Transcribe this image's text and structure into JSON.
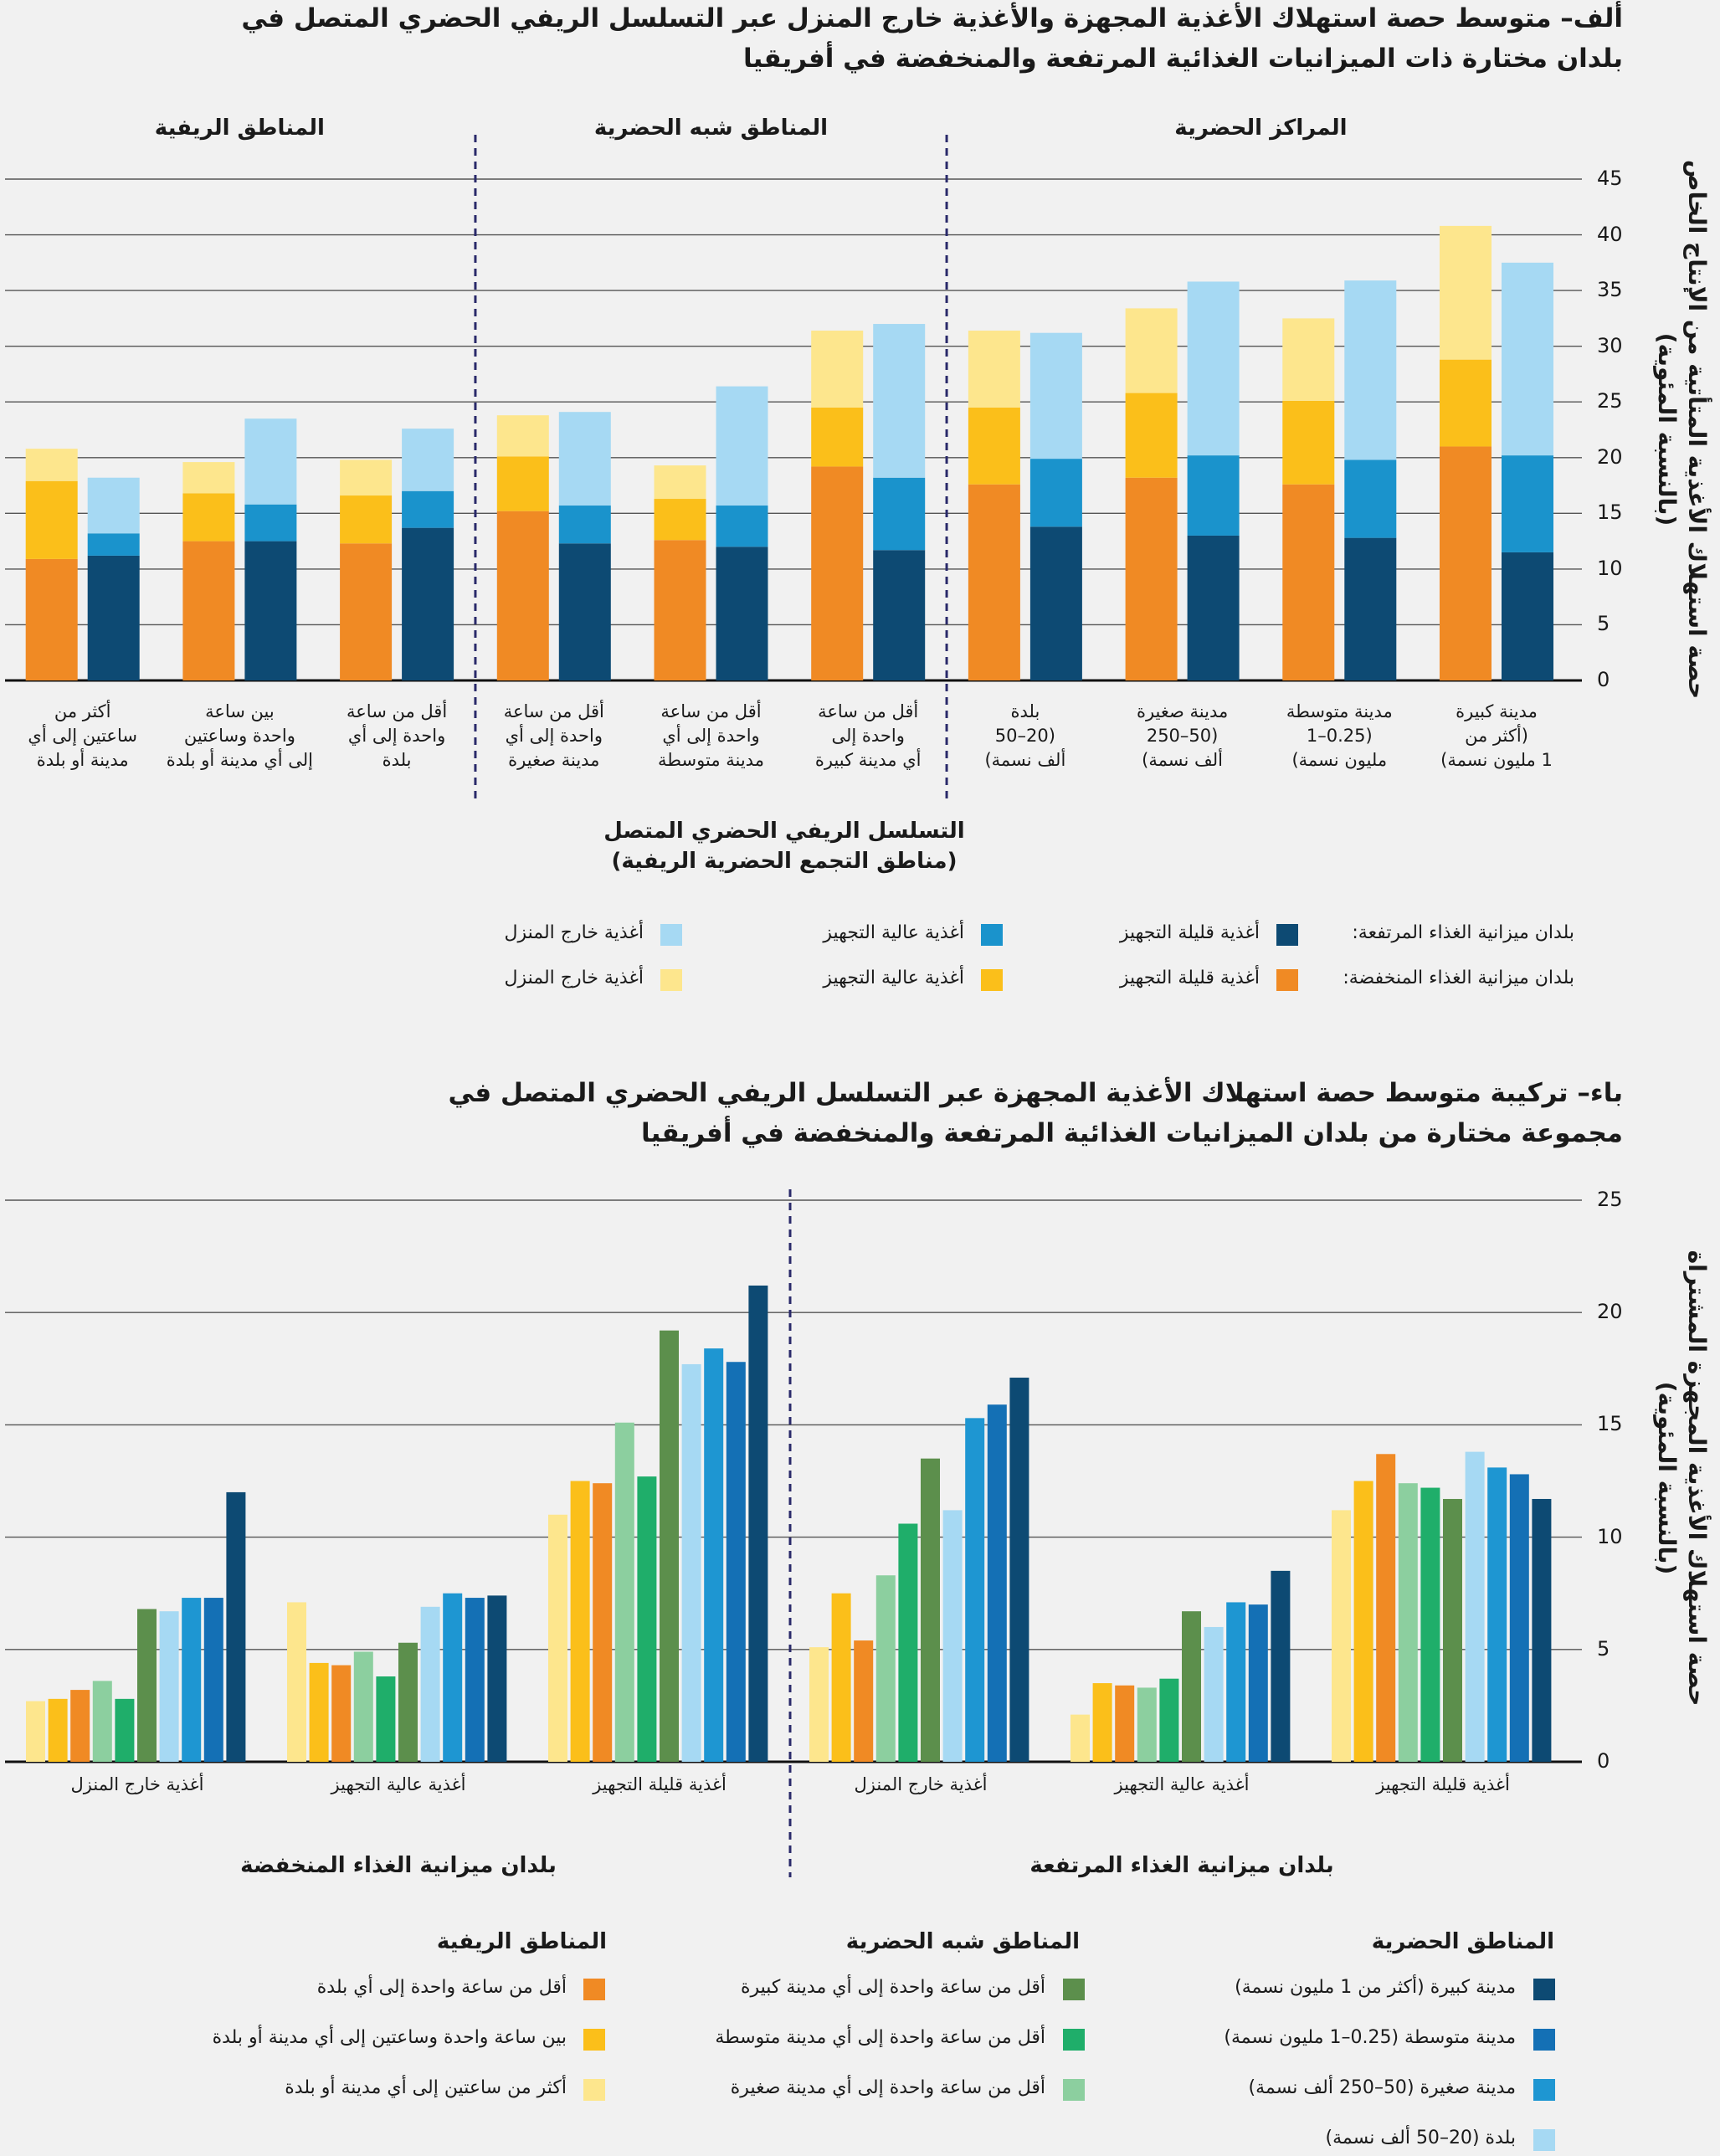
{
  "chart_data": [
    {
      "type": "stacked_bar",
      "title": [
        "ألف–  متوسط حصة استهلاك الأغذية المجهزة والأغذية خارج المنزل عبر التسلسل الريفي الحضري المتصل في",
        "بلدان مختارة ذات الميزانيات الغذائية المرتفعة والمنخفضة في أفريقيا"
      ],
      "ylabel": [
        "حصة استهلاك الأغذية المتأتية من الإنتاج الخاص",
        "(بالنسبة المئوية)"
      ],
      "xlabel": [
        "التسلسل الريفي الحضري المتصل",
        "(مناطق التجمع الحضرية الريفية)"
      ],
      "groups": [
        {
          "label": "المراكز الحضرية",
          "categories": [
            [
              "مدينة كبيرة",
              "(أكثر من",
              "1 مليون نسمة)"
            ],
            [
              "مدينة متوسطة",
              "(0.25–1",
              "مليون نسمة)"
            ],
            [
              "مدينة صغيرة",
              "(50–250",
              "ألف نسمة)"
            ],
            [
              "بلدة",
              "(20–50",
              "ألف نسمة)"
            ]
          ]
        },
        {
          "label": "المناطق شبه الحضرية",
          "categories": [
            [
              "أقل من ساعة",
              "واحدة إلى",
              "أي مدينة كبيرة"
            ],
            [
              "أقل من ساعة",
              "واحدة إلى أي",
              "مدينة متوسطة"
            ],
            [
              "أقل من ساعة",
              "واحدة إلى أي",
              "مدينة صغيرة"
            ]
          ]
        },
        {
          "label": "المناطق الريفية",
          "categories": [
            [
              "أقل من ساعة",
              "واحدة إلى أي",
              "بلدة"
            ],
            [
              "بين ساعة",
              "واحدة وساعتين",
              "إلى أي مدينة أو بلدة"
            ],
            [
              "أكثر من",
              "ساعتين إلى أي",
              "مدينة أو بلدة"
            ]
          ]
        }
      ],
      "series": [
        {
          "name": "بلدان ميزانية الغذاء المرتفعة:",
          "stack": [
            {
              "name": "أغذية قليلة التجهيز",
              "color": "#0d4a73",
              "values": [
                11.5,
                12.8,
                13,
                13.8,
                11.7,
                12,
                12.3,
                13.7,
                12.5,
                11.2
              ]
            },
            {
              "name": "أغذية عالية التجهيز",
              "color": "#1a93cc",
              "values": [
                8.7,
                7,
                7.2,
                6.1,
                6.5,
                3.7,
                3.4,
                3.3,
                3.3,
                2
              ]
            },
            {
              "name": "أغذية خارج المنزل",
              "color": "#a6d9f3",
              "values": [
                17.3,
                16.1,
                15.6,
                11.3,
                13.8,
                10.7,
                8.4,
                5.6,
                7.7,
                5
              ]
            }
          ]
        },
        {
          "name": "بلدان ميزانية الغذاء المنخفضة:",
          "stack": [
            {
              "name": "أغذية قليلة التجهيز",
              "color": "#f08a24",
              "values": [
                21,
                17.6,
                18.2,
                17.6,
                19.2,
                12.6,
                15.2,
                12.3,
                12.5,
                10.9
              ]
            },
            {
              "name": "أغذية عالية التجهيز",
              "color": "#fbbf1a",
              "values": [
                7.8,
                7.5,
                7.6,
                6.9,
                5.3,
                3.7,
                4.9,
                4.3,
                4.3,
                7
              ]
            },
            {
              "name": "أغذية خارج المنزل",
              "color": "#fde68d",
              "values": [
                12,
                7.4,
                7.6,
                6.9,
                6.9,
                3,
                3.7,
                3.2,
                2.8,
                2.9
              ]
            }
          ]
        }
      ],
      "ylim": [
        0,
        45
      ],
      "yticks": [
        0,
        5,
        10,
        15,
        20,
        25,
        30,
        35,
        40,
        45
      ],
      "grid": true
    },
    {
      "type": "grouped_bar",
      "title": [
        "باء–  تركيبة متوسط حصة استهلاك الأغذية المجهزة عبر التسلسل الريفي الحضري المتصل في",
        "مجموعة مختارة من بلدان الميزانيات الغذائية المرتفعة والمنخفضة في أفريقيا"
      ],
      "ylabel": [
        "حصة استهلاك الأغذية المجهزة المشتراة",
        "(بالنسبة المئوية)"
      ],
      "groups": [
        {
          "label": "بلدان ميزانية الغذاء المرتفعة",
          "categories": [
            "أغذية قليلة التجهيز",
            "أغذية عالية التجهيز",
            "أغذية خارج المنزل"
          ]
        },
        {
          "label": "بلدان ميزانية الغذاء المنخفضة",
          "categories": [
            "أغذية قليلة التجهيز",
            "أغذية عالية التجهيز",
            "أغذية خارج المنزل"
          ]
        }
      ],
      "series_groups": [
        {
          "name": "المناطق الحضرية",
          "series": [
            {
              "name": "مدينة كبيرة (أكثر من 1 مليون نسمة)",
              "color": "#0d4a73",
              "values": [
                11.7,
                8.5,
                17.1,
                21.2,
                7.4,
                12
              ]
            },
            {
              "name": "مدينة متوسطة (0.25–1 مليون نسمة)",
              "color": "#1470b5",
              "values": [
                12.8,
                7,
                15.9,
                17.8,
                7.3,
                7.3
              ]
            },
            {
              "name": "مدينة صغيرة (50–250 ألف نسمة)",
              "color": "#1e96d2",
              "values": [
                13.1,
                7.1,
                15.3,
                18.4,
                7.5,
                7.3
              ]
            },
            {
              "name": "بلدة (20–50 ألف نسمة)",
              "color": "#a6d9f3",
              "values": [
                13.8,
                6,
                11.2,
                17.7,
                6.9,
                6.7
              ]
            }
          ]
        },
        {
          "name": "المناطق شبه الحضرية",
          "series": [
            {
              "name": "أقل من ساعة واحدة إلى أي مدينة كبيرة",
              "color": "#5c8f4c",
              "values": [
                11.7,
                6.7,
                13.5,
                19.2,
                5.3,
                6.8
              ]
            },
            {
              "name": "أقل من ساعة واحدة إلى أي مدينة متوسطة",
              "color": "#1fae6a",
              "values": [
                12.2,
                3.7,
                10.6,
                12.7,
                3.8,
                2.8
              ]
            },
            {
              "name": "أقل من ساعة واحدة إلى أي مدينة صغيرة",
              "color": "#8ccf9f",
              "values": [
                12.4,
                3.3,
                8.3,
                15.1,
                4.9,
                3.6
              ]
            }
          ]
        },
        {
          "name": "المناطق الريفية",
          "series": [
            {
              "name": "أقل من ساعة واحدة إلى أي بلدة",
              "color": "#f08a24",
              "values": [
                13.7,
                3.4,
                5.4,
                12.4,
                4.3,
                3.2
              ]
            },
            {
              "name": "بين ساعة واحدة وساعتين إلى أي مدينة أو بلدة",
              "color": "#fbbf1a",
              "values": [
                12.5,
                3.5,
                7.5,
                12.5,
                4.4,
                2.8
              ]
            },
            {
              "name": "أكثر من ساعتين إلى أي مدينة أو بلدة",
              "color": "#fde68d",
              "values": [
                11.2,
                2.1,
                5.1,
                11,
                7.1,
                2.7
              ]
            }
          ]
        }
      ],
      "ylim": [
        0,
        25
      ],
      "yticks": [
        0,
        5,
        10,
        15,
        20,
        25
      ],
      "grid": true
    }
  ]
}
